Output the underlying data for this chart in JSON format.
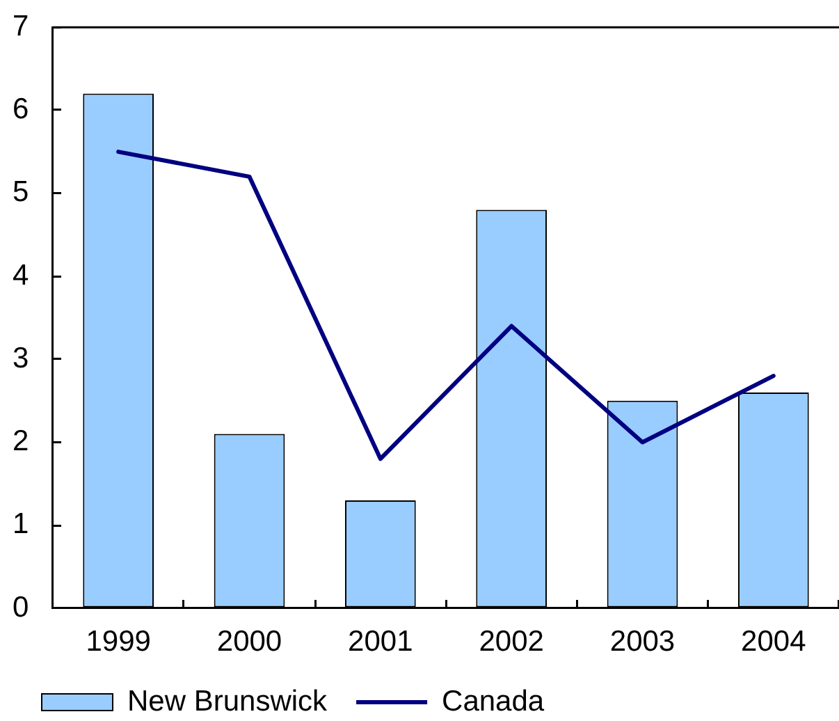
{
  "chart_data": {
    "type": "bar",
    "categories": [
      "1999",
      "2000",
      "2001",
      "2002",
      "2003",
      "2004"
    ],
    "series": [
      {
        "name": "New Brunswick",
        "color": "#99ccff",
        "values": [
          6.2,
          2.1,
          1.3,
          4.8,
          2.5,
          2.6
        ]
      },
      {
        "name": "Canada",
        "type": "line",
        "color": "#000080",
        "values": [
          5.5,
          5.2,
          1.8,
          3.4,
          2.0,
          2.8
        ]
      }
    ],
    "ylim": [
      0,
      7
    ],
    "yticks": [
      0,
      1,
      2,
      3,
      4,
      5,
      6,
      7
    ],
    "grid": false,
    "legend": "bottom left",
    "marker": "none"
  }
}
